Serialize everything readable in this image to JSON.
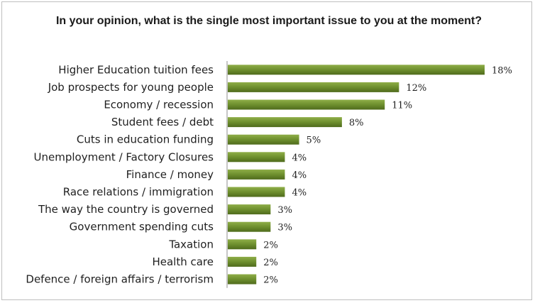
{
  "chart_data": {
    "type": "bar",
    "orientation": "horizontal",
    "title": "In your opinion, what is the single most important issue to you at the moment?",
    "categories": [
      "Higher Education tuition fees",
      "Job prospects for young people",
      "Economy / recession",
      "Student fees / debt",
      "Cuts in education funding",
      "Unemployment / Factory Closures",
      "Finance / money",
      "Race relations / immigration",
      "The way the country is governed",
      "Government spending cuts",
      "Taxation",
      "Health care",
      "Defence / foreign affairs / terrorism"
    ],
    "values": [
      18,
      12,
      11,
      8,
      5,
      4,
      4,
      4,
      3,
      3,
      2,
      2,
      2
    ],
    "value_labels": [
      "18%",
      "12%",
      "11%",
      "8%",
      "5%",
      "4%",
      "4%",
      "4%",
      "3%",
      "3%",
      "2%",
      "2%",
      "2%"
    ],
    "unit": "%",
    "xlim": [
      0,
      18
    ],
    "grid": false,
    "legend": "none",
    "bar_color": "#6e8f2e",
    "bar_color_light": "#8fae48",
    "bar_color_dark": "#4f6b1c",
    "axis_color": "#8c8c8c"
  }
}
